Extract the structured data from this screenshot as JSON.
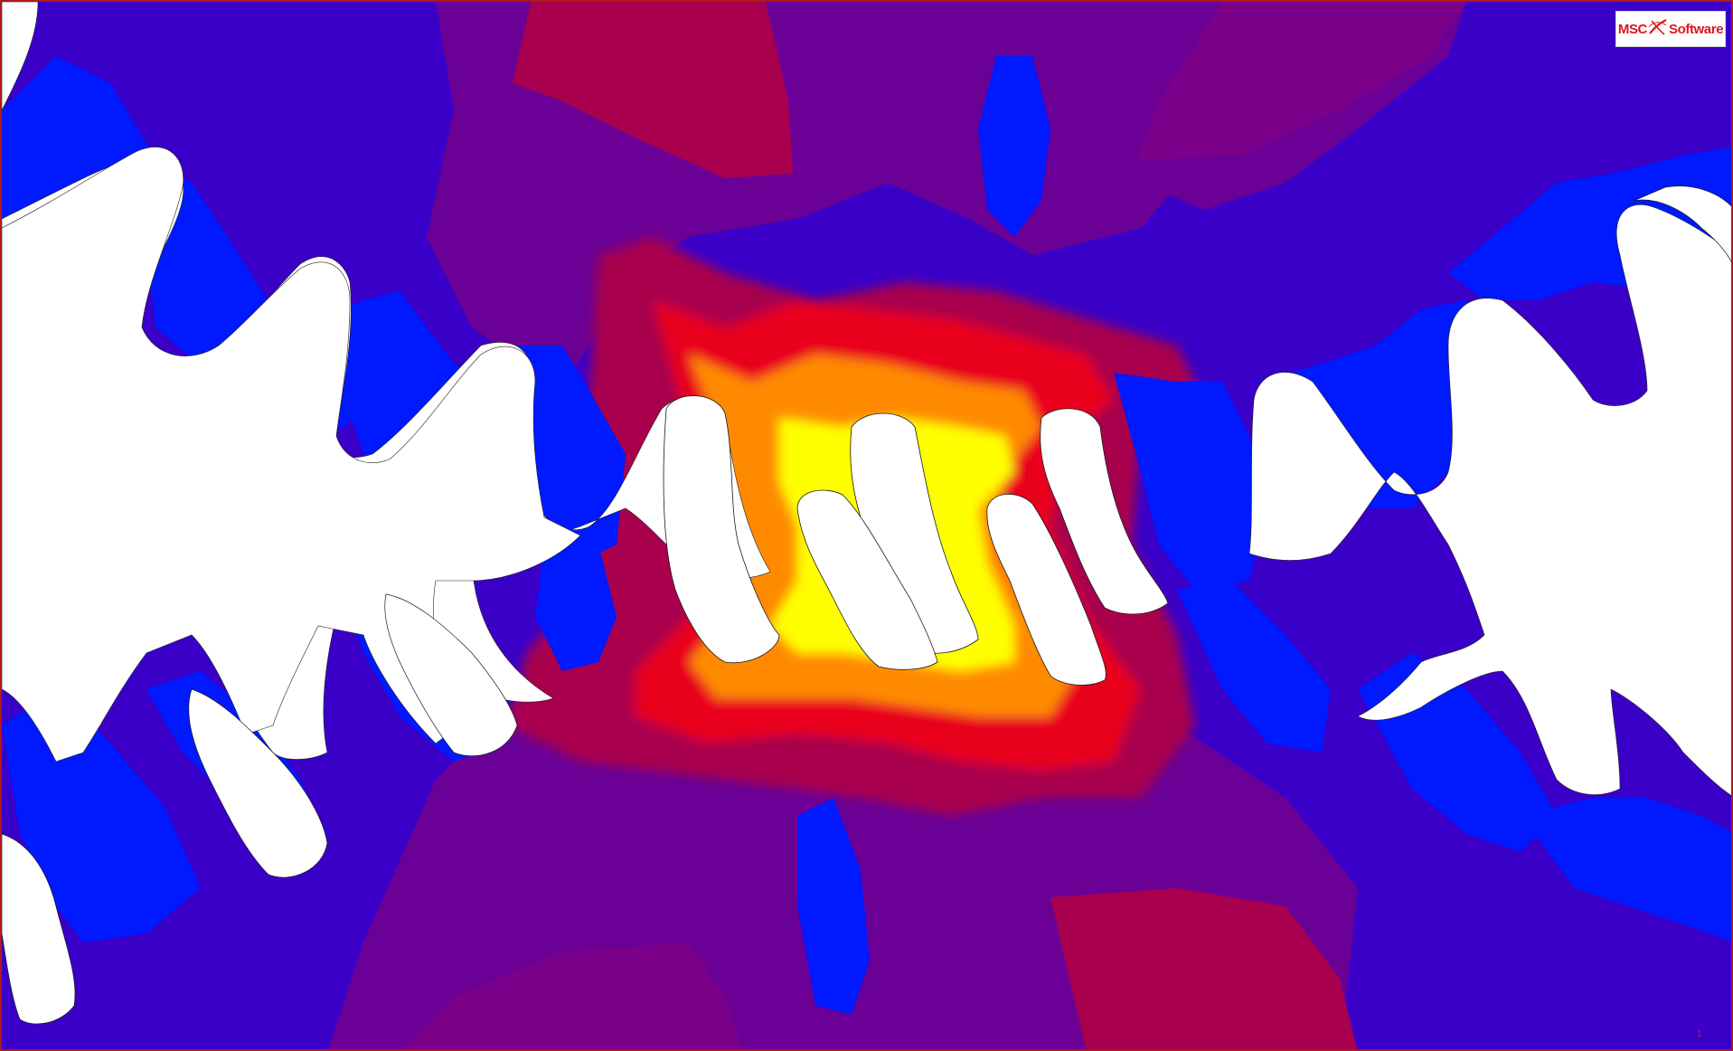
{
  "logo": {
    "prefix": "MSC",
    "suffix": "Software",
    "icon": "msc-swoosh-icon"
  },
  "frame_index": "1",
  "colors": {
    "contour_blue": "#0019ff",
    "contour_indigo": "#3a00c8",
    "contour_purple": "#6a0096",
    "contour_magenta": "#a8004e",
    "contour_red": "#e8001c",
    "contour_orange": "#ff8a00",
    "contour_yellow": "#ffff00",
    "gear_face": "#ffffff",
    "border": "#b01818",
    "logo_red": "#e0161d"
  }
}
